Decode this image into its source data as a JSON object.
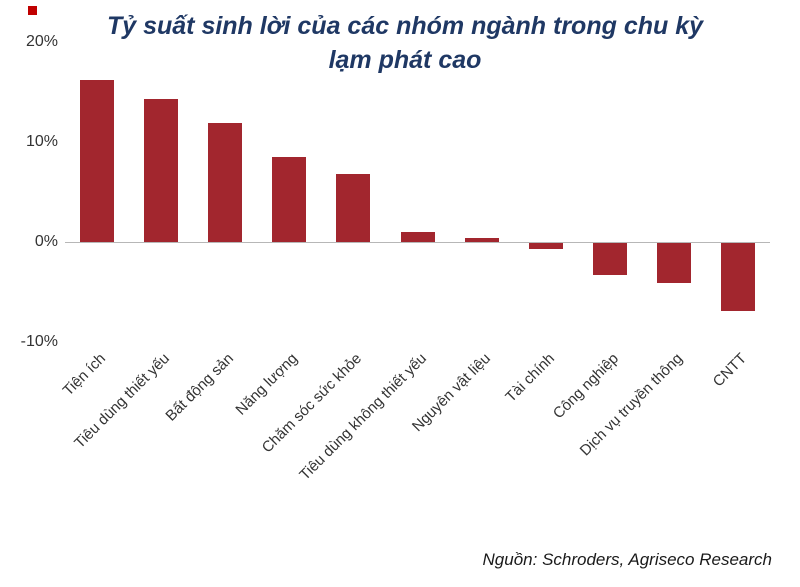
{
  "title": "Tỷ suất sinh lời của các nhóm ngành trong chu kỳ lạm phát cao",
  "source": "Nguồn: Schroders, Agriseco Research",
  "chart_data": {
    "type": "bar",
    "title": "Tỷ suất sinh lời của các nhóm ngành trong chu kỳ lạm phát cao",
    "categories": [
      "Tiện ích",
      "Tiêu dùng thiết yếu",
      "Bất động sản",
      "Năng lượng",
      "Chăm sóc sức khỏe",
      "Tiêu dùng không thiết yếu",
      "Nguyên vật liệu",
      "Tài chính",
      "Công nghiệp",
      "Dịch vụ truyền thông",
      "CNTT"
    ],
    "values": [
      16.2,
      14.3,
      11.9,
      8.5,
      6.8,
      1.0,
      0.4,
      -0.6,
      -3.2,
      -4.0,
      -6.8
    ],
    "xlabel": "",
    "ylabel": "",
    "ylim": [
      -10,
      20
    ],
    "yticks": [
      20,
      10,
      0,
      -10
    ],
    "ytick_labels": [
      "20%",
      "10%",
      "0%",
      "-10%"
    ],
    "bar_color": "#a2262e",
    "title_color": "#1f3864",
    "axis_line_color": "#b7b7b7",
    "grid": false,
    "legend": "none"
  }
}
